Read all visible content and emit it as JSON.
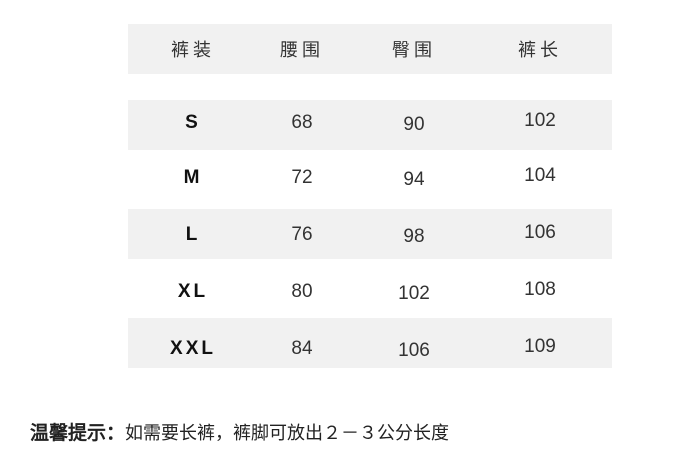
{
  "table": {
    "headers": [
      "裤装",
      "腰围",
      "臀围",
      "裤长"
    ],
    "rows": [
      [
        "S",
        "68",
        "90",
        "102"
      ],
      [
        "M",
        "72",
        "94",
        "104"
      ],
      [
        "L",
        "76",
        "98",
        "106"
      ],
      [
        "XL",
        "80",
        "102",
        "108"
      ],
      [
        "XXL",
        "84",
        "106",
        "109"
      ]
    ]
  },
  "tip": {
    "label": "温馨提示：",
    "text": "如需要长裤，裤脚可放出２－３公分长度"
  }
}
